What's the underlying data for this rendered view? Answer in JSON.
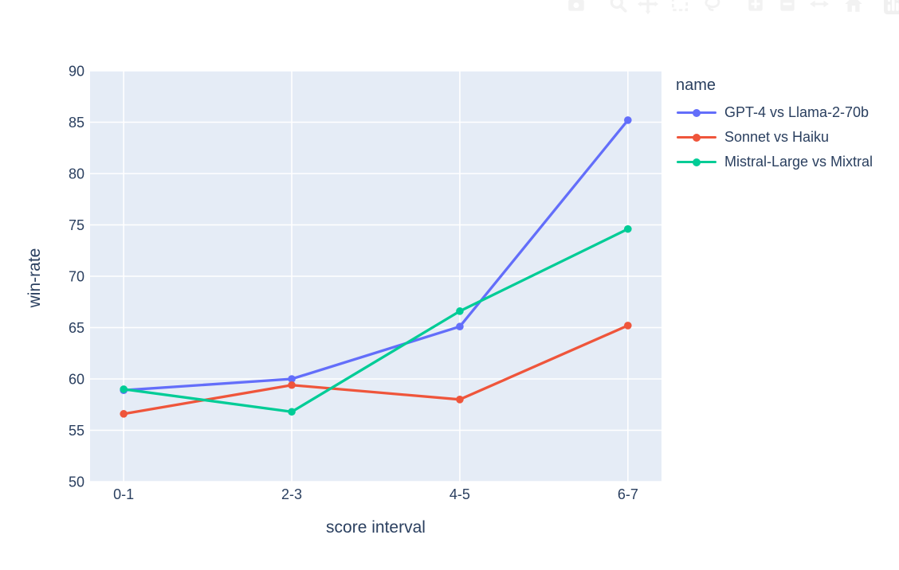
{
  "chart_data": {
    "type": "line",
    "title": "",
    "xlabel": "score interval",
    "ylabel": "win-rate",
    "categories": [
      "0-1",
      "2-3",
      "4-5",
      "6-7"
    ],
    "series": [
      {
        "name": "GPT-4 vs Llama-2-70b",
        "color": "#636efa",
        "values": [
          58.9,
          60.0,
          65.1,
          85.2
        ]
      },
      {
        "name": "Sonnet vs Haiku",
        "color": "#ef553b",
        "values": [
          56.6,
          59.4,
          58.0,
          65.2
        ]
      },
      {
        "name": "Mistral-Large vs Mixtral",
        "color": "#00cc96",
        "values": [
          59.0,
          56.8,
          66.6,
          74.6
        ]
      }
    ],
    "ylim": [
      50,
      90
    ],
    "yticks": [
      50,
      55,
      60,
      65,
      70,
      75,
      80,
      85,
      90
    ],
    "grid": true,
    "legend_title": "name",
    "legend_position": "right"
  },
  "legend": {
    "title": "name"
  },
  "colors": {
    "page_background": "#ffffff",
    "plot_background": "#e5ecf6",
    "grid": "#ffffff",
    "text": "#2a3f5f",
    "modebar_icon": "#f2f2f2",
    "modebar_logo_bg": "#f0f0f0"
  },
  "modebar": {
    "items": [
      "camera-download-icon",
      "zoom-icon",
      "pan-icon",
      "box-select-icon",
      "lasso-select-icon",
      "zoom-in-icon",
      "zoom-out-icon",
      "autoscale-icon",
      "reset-axes-home-icon",
      "plotly-logo-icon"
    ]
  }
}
